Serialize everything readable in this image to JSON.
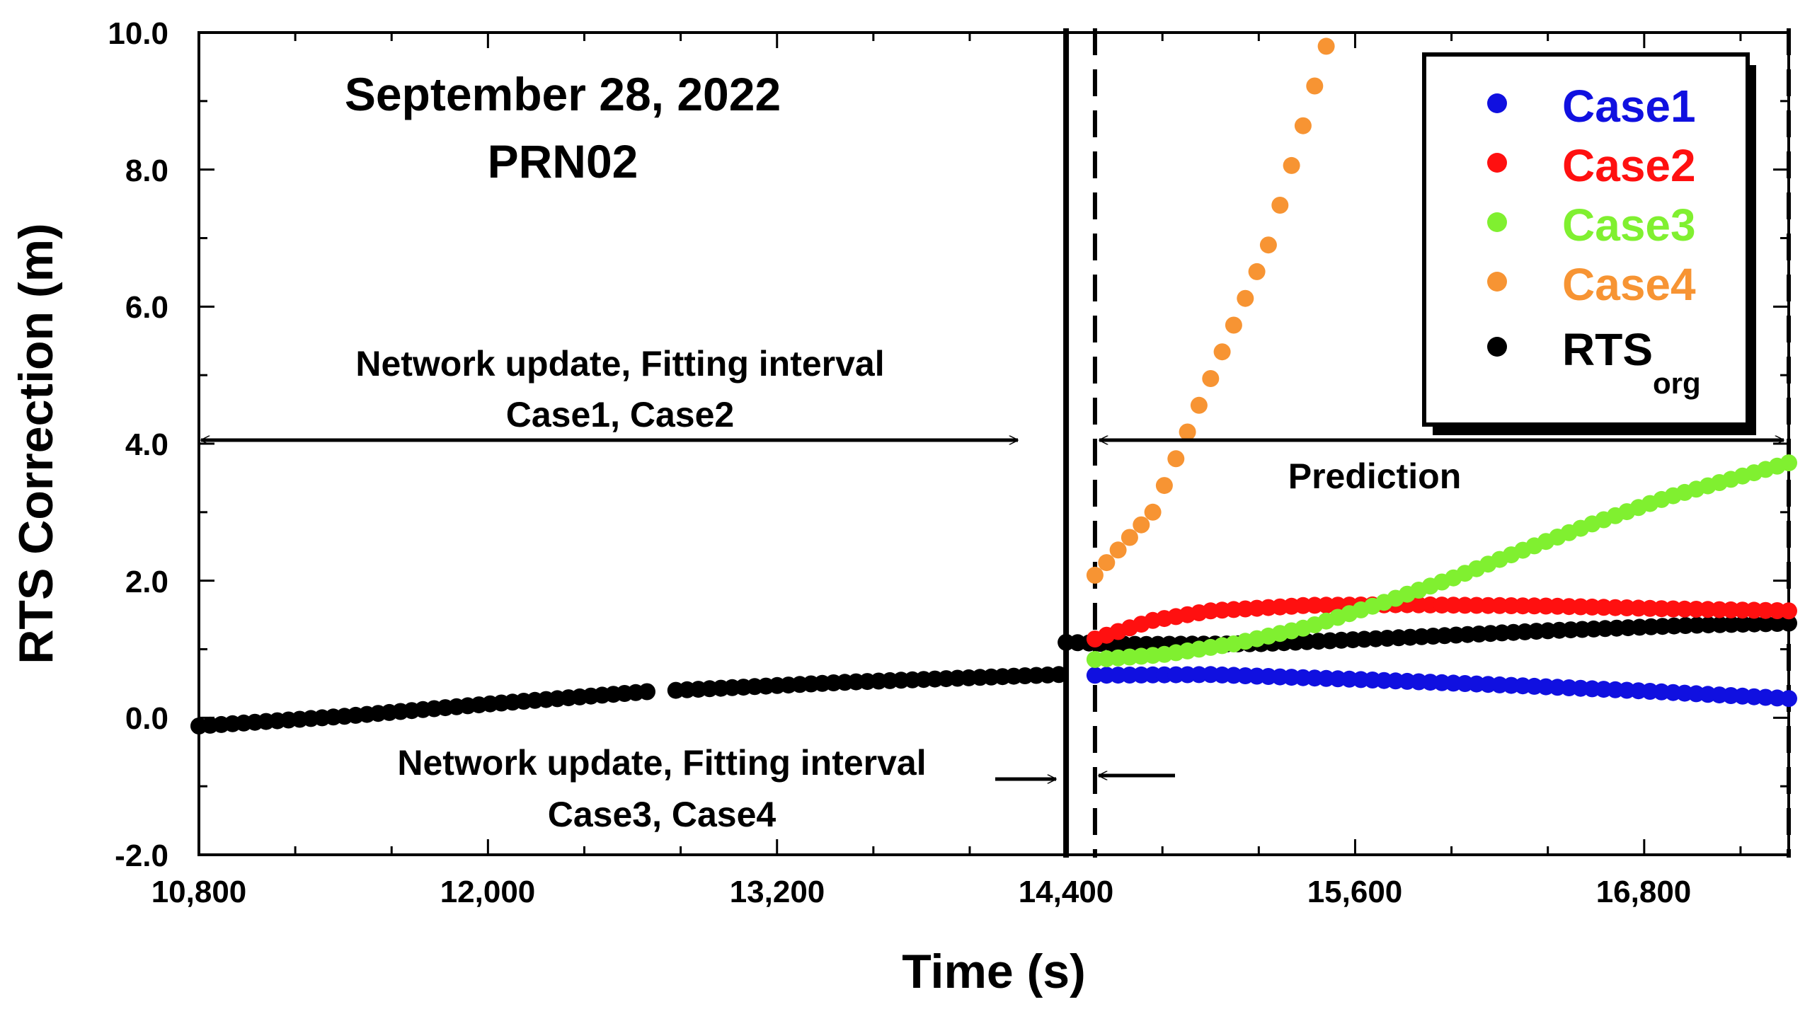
{
  "chart_data": {
    "type": "scatter",
    "title_lines": [
      "September 28, 2022",
      "PRN02"
    ],
    "xlabel": "Time (s)",
    "ylabel": "RTS Correction (m)",
    "xlim": [
      10800,
      17400
    ],
    "ylim": [
      -2.0,
      10.0
    ],
    "x_ticks": [
      10800,
      12000,
      13200,
      14400,
      15600,
      16800
    ],
    "x_tick_labels": [
      "10,800",
      "12,000",
      "13,200",
      "14,400",
      "15,600",
      "16,800"
    ],
    "y_ticks": [
      -2.0,
      0.0,
      2.0,
      4.0,
      6.0,
      8.0,
      10.0
    ],
    "y_tick_labels": [
      "-2.0",
      "0.0",
      "2.0",
      "4.0",
      "6.0",
      "8.0",
      "10.0"
    ],
    "vertical_lines": [
      {
        "x": 14400,
        "style": "solid"
      },
      {
        "x": 14520,
        "style": "dashed"
      },
      {
        "x": 17400,
        "style": "dashed"
      }
    ],
    "annotations": {
      "fit12_line1": "Network update, Fitting interval",
      "fit12_line2": "Case1, Case2",
      "fit34_line1": "Network update, Fitting interval",
      "fit34_line2": "Case3, Case4",
      "prediction": "Prediction"
    },
    "series": [
      {
        "name": "Case1",
        "color": "#1010e0",
        "x_start": 14520,
        "x_end": 17400,
        "count": 61,
        "y_points": [
          [
            14520,
            0.62
          ],
          [
            15000,
            0.63
          ],
          [
            15600,
            0.56
          ],
          [
            16200,
            0.48
          ],
          [
            16800,
            0.39
          ],
          [
            17400,
            0.28
          ]
        ]
      },
      {
        "name": "Case2",
        "color": "#ff1010",
        "x_start": 14520,
        "x_end": 17400,
        "count": 61,
        "y_points": [
          [
            14520,
            1.15
          ],
          [
            14760,
            1.42
          ],
          [
            15000,
            1.56
          ],
          [
            15400,
            1.64
          ],
          [
            15800,
            1.65
          ],
          [
            16400,
            1.63
          ],
          [
            16900,
            1.59
          ],
          [
            17400,
            1.56
          ]
        ]
      },
      {
        "name": "Case3",
        "color": "#80f030",
        "x_start": 14520,
        "x_end": 17400,
        "count": 61,
        "y_points": [
          [
            14520,
            0.85
          ],
          [
            14800,
            0.92
          ],
          [
            15100,
            1.08
          ],
          [
            15400,
            1.32
          ],
          [
            15700,
            1.66
          ],
          [
            16000,
            2.03
          ],
          [
            16300,
            2.45
          ],
          [
            16600,
            2.85
          ],
          [
            16900,
            3.22
          ],
          [
            17200,
            3.52
          ],
          [
            17400,
            3.72
          ]
        ]
      },
      {
        "name": "Case4",
        "color": "#f79433",
        "x_start": 14520,
        "x_end": 15480,
        "count": 21,
        "y_points": [
          [
            14520,
            2.08
          ],
          [
            14760,
            3.0
          ],
          [
            15000,
            4.95
          ],
          [
            15240,
            6.9
          ],
          [
            15480,
            9.8
          ]
        ]
      },
      {
        "name": "RTS",
        "subscript": "org",
        "color": "#000000",
        "segments": [
          {
            "x_start": 10800,
            "x_end": 12660,
            "count": 41,
            "y_points": [
              [
                10800,
                -0.12
              ],
              [
                11400,
                0.02
              ],
              [
                12000,
                0.2
              ],
              [
                12660,
                0.38
              ]
            ]
          },
          {
            "x_start": 12780,
            "x_end": 14370,
            "count": 35,
            "y_points": [
              [
                12780,
                0.4
              ],
              [
                13500,
                0.52
              ],
              [
                14370,
                0.63
              ]
            ]
          },
          {
            "x_start": 14400,
            "x_end": 17400,
            "count": 64,
            "y_points": [
              [
                14400,
                1.1
              ],
              [
                14700,
                1.07
              ],
              [
                15200,
                1.08
              ],
              [
                15800,
                1.17
              ],
              [
                16400,
                1.27
              ],
              [
                17000,
                1.35
              ],
              [
                17400,
                1.38
              ]
            ]
          }
        ]
      }
    ],
    "legend": {
      "placement": "top-right",
      "entries": [
        {
          "label": "Case1",
          "color": "#1010e0"
        },
        {
          "label": "Case2",
          "color": "#ff1010"
        },
        {
          "label": "Case3",
          "color": "#80f030"
        },
        {
          "label": "Case4",
          "color": "#f79433"
        },
        {
          "label": "RTS",
          "subscript": "org",
          "color": "#000000"
        }
      ]
    }
  }
}
